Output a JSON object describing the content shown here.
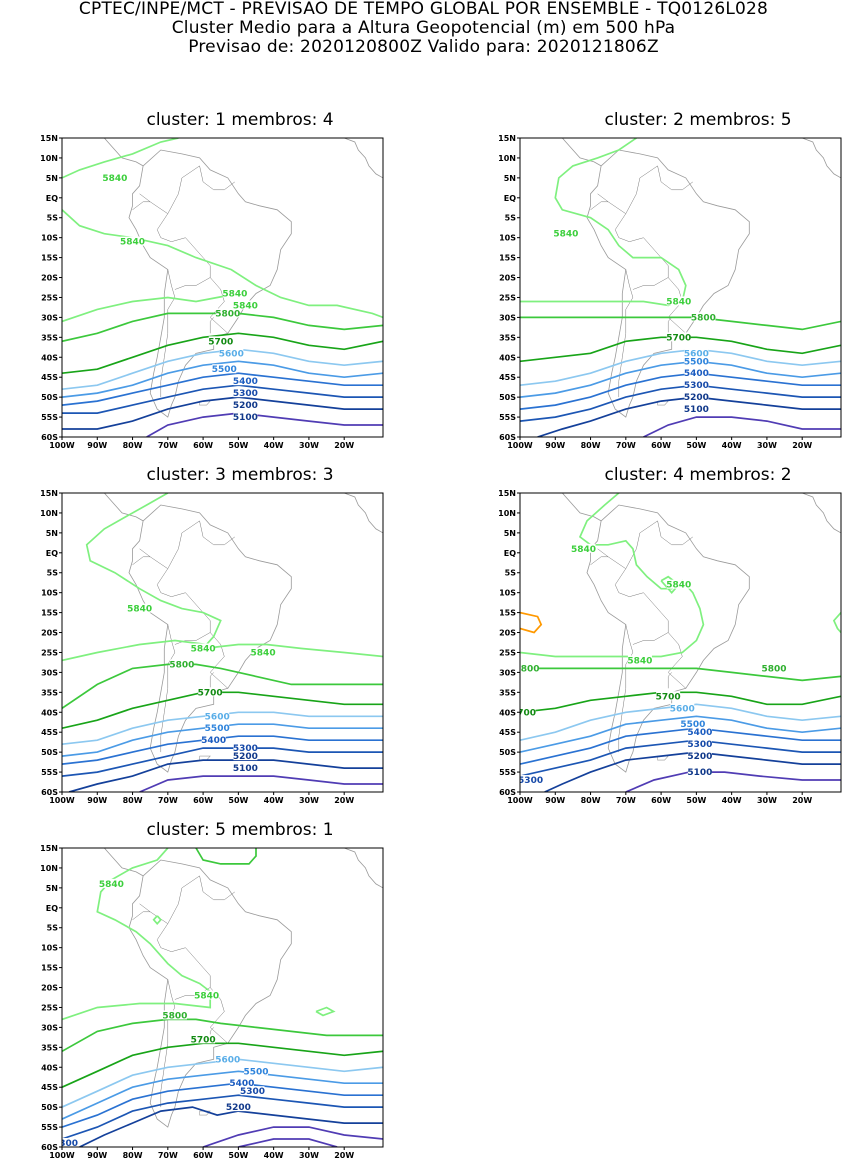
{
  "header": {
    "line1": "CPTEC/INPE/MCT - PREVISAO DE TEMPO GLOBAL POR ENSEMBLE - TQ0126L028",
    "line2": "Cluster Medio para a Altura Geopotencial (m) em 500 hPa",
    "line3": "Previsao de: 2020120800Z    Valido para: 2020121806Z"
  },
  "axes": {
    "lat_labels": [
      "15N",
      "10N",
      "5N",
      "EQ",
      "5S",
      "10S",
      "15S",
      "20S",
      "25S",
      "30S",
      "35S",
      "40S",
      "45S",
      "50S",
      "55S",
      "60S"
    ],
    "lon_labels": [
      "100W",
      "90W",
      "80W",
      "70W",
      "60W",
      "50W",
      "40W",
      "30W",
      "20W"
    ]
  },
  "colors": {
    "c5840": "#7ff07f",
    "c5800": "#3cc83c",
    "c5700": "#18a418",
    "c5600": "#8cc8f0",
    "c5500": "#4b9be6",
    "c5400": "#2a72d2",
    "c5300": "#1c56b4",
    "c5200": "#14409a",
    "c5100": "#503cb4",
    "c5900": "#ff9900",
    "coast": "#9a9a9a",
    "border": "#7a7a7a"
  },
  "panels": [
    {
      "title": "cluster: 1   membros: 4",
      "contours": [
        {
          "level": 5840,
          "label": "5840",
          "labels_at": [
            [
              -85,
              5
            ],
            [
              -80,
              -11
            ],
            [
              -48,
              -27
            ],
            [
              -51,
              -24
            ]
          ]
        },
        {
          "level": 5800,
          "label": "5800",
          "labels_at": [
            [
              -53,
              -29
            ]
          ]
        },
        {
          "level": 5700,
          "label": "5700",
          "labels_at": [
            [
              -55,
              -36
            ]
          ]
        },
        {
          "level": 5600,
          "label": "5600",
          "labels_at": [
            [
              -52,
              -39
            ]
          ]
        },
        {
          "level": 5500,
          "label": "5500",
          "labels_at": [
            [
              -54,
              -43
            ]
          ]
        },
        {
          "level": 5400,
          "label": "5400",
          "labels_at": [
            [
              -48,
              -46
            ]
          ]
        },
        {
          "level": 5300,
          "label": "5300",
          "labels_at": [
            [
              -48,
              -49
            ]
          ]
        },
        {
          "level": 5200,
          "label": "5200",
          "labels_at": [
            [
              -48,
              -52
            ]
          ]
        },
        {
          "level": 5100,
          "label": "5100",
          "labels_at": [
            [
              -48,
              -55
            ]
          ]
        }
      ]
    },
    {
      "title": "cluster: 2   membros: 5",
      "contours": [
        {
          "level": 5840,
          "label": "5840",
          "labels_at": [
            [
              -87,
              -9
            ],
            [
              -55,
              -26
            ]
          ]
        },
        {
          "level": 5800,
          "label": "5800",
          "labels_at": [
            [
              -48,
              -30
            ]
          ]
        },
        {
          "level": 5700,
          "label": "5700",
          "labels_at": [
            [
              -55,
              -35
            ]
          ]
        },
        {
          "level": 5600,
          "label": "5600",
          "labels_at": [
            [
              -50,
              -39
            ]
          ]
        },
        {
          "level": 5500,
          "label": "5500",
          "labels_at": [
            [
              -50,
              -41
            ]
          ]
        },
        {
          "level": 5400,
          "label": "5400",
          "labels_at": [
            [
              -50,
              -44
            ]
          ]
        },
        {
          "level": 5300,
          "label": "5300",
          "labels_at": [
            [
              -50,
              -47
            ]
          ]
        },
        {
          "level": 5200,
          "label": "5200",
          "labels_at": [
            [
              -50,
              -50
            ]
          ]
        },
        {
          "level": 5100,
          "label": "5100",
          "labels_at": [
            [
              -50,
              -53
            ]
          ]
        }
      ]
    },
    {
      "title": "cluster: 3   membros: 3",
      "contours": [
        {
          "level": 5840,
          "label": "5840",
          "labels_at": [
            [
              -78,
              -14
            ],
            [
              -60,
              -24
            ],
            [
              -43,
              -25
            ]
          ]
        },
        {
          "level": 5800,
          "label": "5800",
          "labels_at": [
            [
              -66,
              -28
            ]
          ]
        },
        {
          "level": 5700,
          "label": "5700",
          "labels_at": [
            [
              -58,
              -35
            ]
          ]
        },
        {
          "level": 5600,
          "label": "5600",
          "labels_at": [
            [
              -56,
              -41
            ]
          ]
        },
        {
          "level": 5500,
          "label": "5500",
          "labels_at": [
            [
              -56,
              -44
            ]
          ]
        },
        {
          "level": 5400,
          "label": "5400",
          "labels_at": [
            [
              -57,
              -47
            ]
          ]
        },
        {
          "level": 5300,
          "label": "5300",
          "labels_at": [
            [
              -48,
              -49
            ]
          ]
        },
        {
          "level": 5200,
          "label": "5200",
          "labels_at": [
            [
              -48,
              -51
            ]
          ]
        },
        {
          "level": 5100,
          "label": "5100",
          "labels_at": [
            [
              -48,
              -54
            ]
          ]
        }
      ]
    },
    {
      "title": "cluster: 4   membros: 2",
      "contours": [
        {
          "level": 5840,
          "label": "5840",
          "labels_at": [
            [
              -82,
              1
            ],
            [
              -55,
              -8
            ],
            [
              -66,
              -27
            ]
          ]
        },
        {
          "level": 5800,
          "label": "5800",
          "labels_at": [
            [
              -28,
              -29
            ],
            [
              -98,
              -29
            ]
          ]
        },
        {
          "level": 5700,
          "label": "5700",
          "labels_at": [
            [
              -58,
              -36
            ],
            [
              -99,
              -40
            ]
          ]
        },
        {
          "level": 5600,
          "label": "5600",
          "labels_at": [
            [
              -54,
              -39
            ]
          ]
        },
        {
          "level": 5500,
          "label": "5500",
          "labels_at": [
            [
              -51,
              -43
            ]
          ]
        },
        {
          "level": 5400,
          "label": "5400",
          "labels_at": [
            [
              -49,
              -45
            ]
          ]
        },
        {
          "level": 5300,
          "label": "5300",
          "labels_at": [
            [
              -49,
              -48
            ]
          ]
        },
        {
          "level": 5200,
          "label": "5200",
          "labels_at": [
            [
              -49,
              -51
            ]
          ]
        },
        {
          "level": 5100,
          "label": "5100",
          "labels_at": [
            [
              -49,
              -55
            ]
          ]
        },
        {
          "level": 5300,
          "label": "5300",
          "labels_at": [
            [
              -97,
              -57
            ]
          ]
        }
      ]
    },
    {
      "title": "cluster: 5   membros: 1",
      "contours": [
        {
          "level": 5840,
          "label": "5840",
          "labels_at": [
            [
              -86,
              6
            ],
            [
              -59,
              -22
            ]
          ]
        },
        {
          "level": 5800,
          "label": "5800",
          "labels_at": [
            [
              -68,
              -27
            ]
          ]
        },
        {
          "level": 5700,
          "label": "5700",
          "labels_at": [
            [
              -60,
              -33
            ]
          ]
        },
        {
          "level": 5600,
          "label": "5600",
          "labels_at": [
            [
              -53,
              -38
            ]
          ]
        },
        {
          "level": 5500,
          "label": "5500",
          "labels_at": [
            [
              -45,
              -41
            ]
          ]
        },
        {
          "level": 5400,
          "label": "5400",
          "labels_at": [
            [
              -49,
              -44
            ]
          ]
        },
        {
          "level": 5300,
          "label": "5300",
          "labels_at": [
            [
              -46,
              -46
            ]
          ]
        },
        {
          "level": 5200,
          "label": "5200",
          "labels_at": [
            [
              -50,
              -50
            ]
          ]
        },
        {
          "level": 5300,
          "label": "5300",
          "labels_at": [
            [
              -99,
              -59
            ]
          ]
        }
      ]
    }
  ]
}
